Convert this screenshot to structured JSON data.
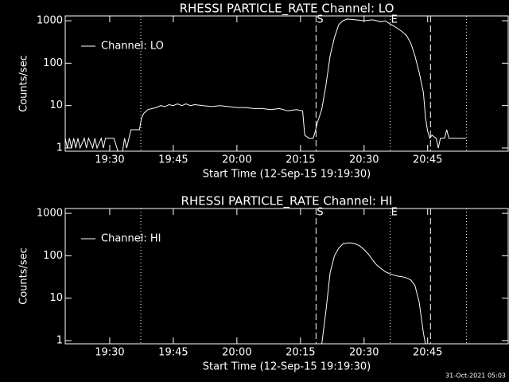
{
  "chart_data": [
    {
      "type": "line",
      "title": "RHESSI PARTICLE_RATE Channel: LO",
      "xlabel": "Start Time (12-Sep-15 19:19:30)",
      "ylabel": "Counts/sec",
      "x": [
        "19:19:30",
        "19:20",
        "19:20:30",
        "19:21",
        "19:21:30",
        "19:22",
        "19:22:30",
        "19:23",
        "19:24",
        "19:24:30",
        "19:25",
        "19:26",
        "19:26:30",
        "19:27",
        "19:28",
        "19:28:30",
        "19:29",
        "19:30",
        "19:31",
        "19:32",
        "19:33",
        "19:33:30",
        "19:34",
        "19:35",
        "19:36",
        "19:37",
        "19:37:30",
        "19:38",
        "19:39",
        "19:40",
        "19:41",
        "19:42",
        "19:43",
        "19:44",
        "19:45",
        "19:46",
        "19:47",
        "19:48",
        "19:49",
        "19:50",
        "19:52",
        "19:54",
        "19:56",
        "19:58",
        "20:00",
        "20:02",
        "20:04",
        "20:06",
        "20:08",
        "20:10",
        "20:12",
        "20:14",
        "20:15:30",
        "20:16",
        "20:17",
        "20:18",
        "20:18:30",
        "20:19",
        "20:20",
        "20:21",
        "20:22",
        "20:23",
        "20:24",
        "20:25",
        "20:26",
        "20:28",
        "20:30",
        "20:32",
        "20:34",
        "20:35",
        "20:36",
        "20:37",
        "20:38",
        "20:39",
        "20:40",
        "20:41",
        "20:42",
        "20:43",
        "20:44",
        "20:44:30",
        "20:45",
        "20:45:30",
        "20:46",
        "20:47",
        "20:47:30",
        "20:48",
        "20:49",
        "20:49:30",
        "20:50",
        "20:52",
        "20:54"
      ],
      "series": [
        {
          "name": "Channel: LO",
          "color": "#ffffff",
          "values": [
            1.7,
            1,
            1.7,
            1,
            1.7,
            1,
            1.7,
            1,
            1.7,
            1,
            1.7,
            1,
            1.7,
            1,
            1.7,
            1,
            1.7,
            1.7,
            1.7,
            0.8,
            0.8,
            1.7,
            1,
            2.7,
            2.7,
            2.7,
            5,
            6.5,
            8,
            8.5,
            9,
            10,
            9.5,
            10.5,
            10,
            11,
            10,
            11,
            10,
            10.5,
            10,
            9.5,
            10,
            9.5,
            9,
            9,
            8.5,
            8.5,
            8,
            8.5,
            7.5,
            8,
            7.5,
            2,
            1.7,
            1.7,
            2.5,
            4,
            8,
            30,
            150,
            400,
            800,
            1000,
            1100,
            1050,
            1000,
            1050,
            950,
            1000,
            850,
            750,
            650,
            550,
            450,
            300,
            150,
            60,
            20,
            5,
            2.5,
            1.7,
            2,
            1.7,
            1,
            1.7,
            1.7,
            2.7,
            1.7,
            1.7,
            1.7
          ]
        }
      ],
      "xlim": [
        "19:19:30",
        "21:04"
      ],
      "xticks": [
        "19:30",
        "19:45",
        "20:00",
        "20:15",
        "20:30",
        "20:45"
      ],
      "ylim": [
        0.84,
        1300
      ],
      "yticks": [
        1,
        10,
        100,
        1000
      ],
      "log_y": true,
      "legend": "upper left",
      "markers": [
        {
          "x": "19:37:20",
          "style": "dotted"
        },
        {
          "x": "20:18:40",
          "style": "dashed"
        },
        {
          "x": "20:36:10",
          "style": "dotted"
        },
        {
          "x": "20:45:40",
          "style": "dashed"
        },
        {
          "x": "20:54:10",
          "style": "dotted"
        }
      ],
      "annotations": [
        {
          "text": "S",
          "x": "20:18:40"
        },
        {
          "text": "E",
          "x": "20:36:10"
        }
      ]
    },
    {
      "type": "line",
      "title": "RHESSI PARTICLE_RATE Channel: HI",
      "xlabel": "Start Time (12-Sep-15 19:19:30)",
      "ylabel": "Counts/sec",
      "x": [
        "20:20",
        "20:21",
        "20:22",
        "20:23",
        "20:24",
        "20:25",
        "20:26",
        "20:27",
        "20:28",
        "20:29",
        "20:30",
        "20:31",
        "20:32",
        "20:33",
        "20:34",
        "20:35",
        "20:36",
        "20:37",
        "20:38",
        "20:39",
        "20:40",
        "20:41",
        "20:42",
        "20:43",
        "20:44",
        "20:44:30"
      ],
      "series": [
        {
          "name": "Channel: HI",
          "color": "#ffffff",
          "values": [
            0.8,
            5,
            40,
            100,
            150,
            190,
            200,
            200,
            190,
            170,
            140,
            110,
            80,
            60,
            50,
            42,
            38,
            35,
            33,
            32,
            30,
            27,
            20,
            8,
            1.5,
            0.8
          ]
        }
      ],
      "xlim": [
        "19:19:30",
        "21:04"
      ],
      "xticks": [
        "19:30",
        "19:45",
        "20:00",
        "20:15",
        "20:30",
        "20:45"
      ],
      "ylim": [
        0.84,
        1300
      ],
      "yticks": [
        1,
        10,
        100,
        1000
      ],
      "log_y": true,
      "legend": "upper left",
      "markers": [
        {
          "x": "19:37:20",
          "style": "dotted"
        },
        {
          "x": "20:18:40",
          "style": "dashed"
        },
        {
          "x": "20:36:10",
          "style": "dotted"
        },
        {
          "x": "20:45:40",
          "style": "dashed"
        },
        {
          "x": "20:54:10",
          "style": "dotted"
        }
      ],
      "annotations": [
        {
          "text": "S",
          "x": "20:18:40"
        },
        {
          "text": "E",
          "x": "20:36:10"
        }
      ]
    }
  ],
  "footer": "31-Oct-2021 05:03"
}
